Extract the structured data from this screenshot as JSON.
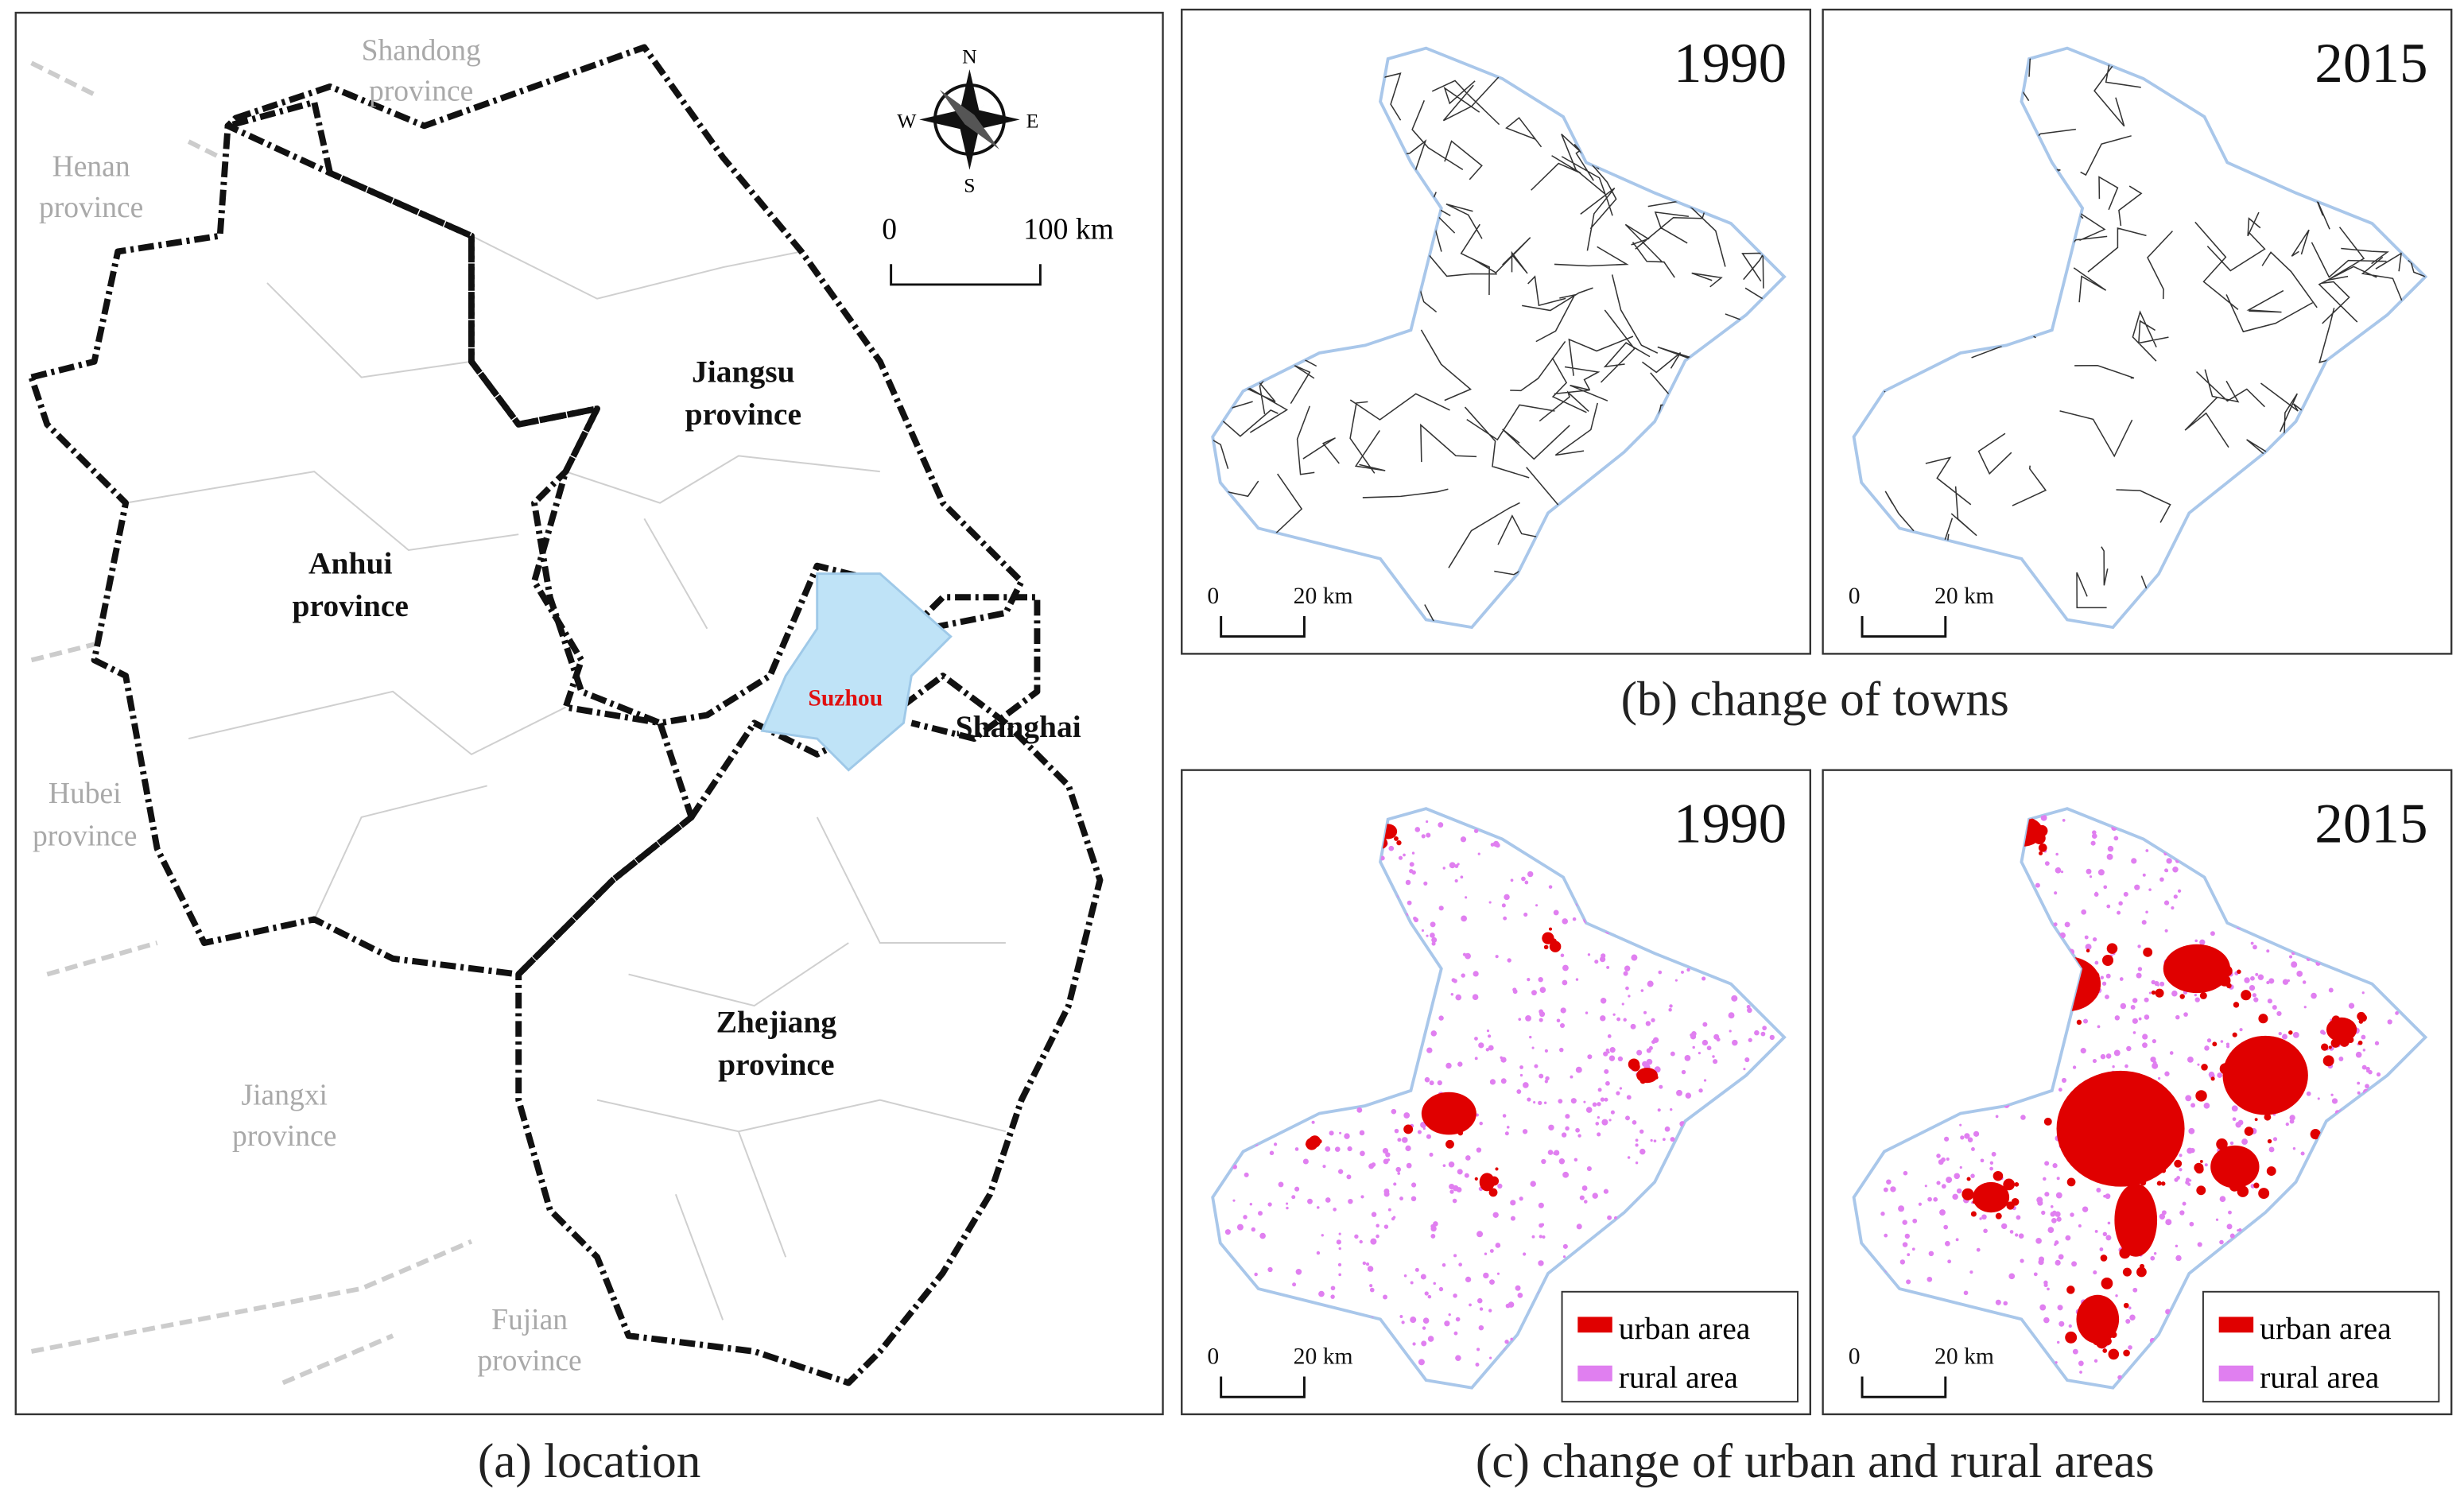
{
  "panel_a": {
    "caption": "(a)  location",
    "neighbors": [
      [
        "Shandong",
        "province"
      ],
      [
        "Henan",
        "province"
      ],
      [
        "Hubei",
        "province"
      ],
      [
        "Jiangxi",
        "province"
      ],
      [
        "Fujian",
        "province"
      ]
    ],
    "provinces": [
      [
        "Jiangsu",
        "province"
      ],
      [
        "Anhui",
        "province"
      ],
      [
        "Zhejiang",
        "province"
      ]
    ],
    "city": "Suzhou",
    "shanghai": "Shanghai",
    "compass": {
      "n": "N",
      "s": "S",
      "e": "E",
      "w": "W"
    },
    "scale": {
      "zero": "0",
      "label": "100 km"
    }
  },
  "panel_b": {
    "caption": "(b)  change of towns",
    "years": [
      "1990",
      "2015"
    ]
  },
  "panel_c": {
    "caption": "(c)  change of urban and rural areas",
    "years": [
      "1990",
      "2015"
    ],
    "legend": [
      "urban area",
      "rural area"
    ]
  },
  "small_scale": {
    "zero": "0",
    "label": "20 km"
  }
}
